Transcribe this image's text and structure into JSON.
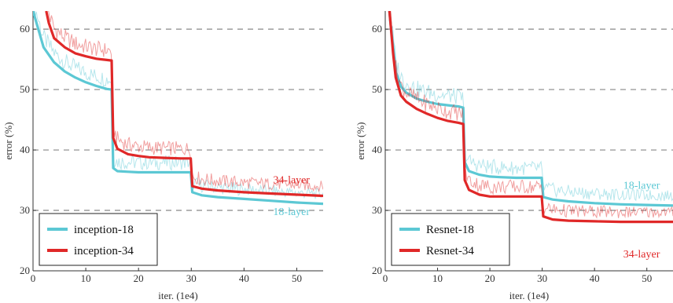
{
  "colors": {
    "series_a": "#5cc8d4",
    "series_b": "#e02828",
    "grid": "#888888"
  },
  "chart_data": [
    {
      "type": "line",
      "xlabel": "iter. (1e4)",
      "ylabel": "error (%)",
      "xlim": [
        0,
        55
      ],
      "ylim": [
        20,
        63
      ],
      "xticks": [
        "0",
        "10",
        "20",
        "30",
        "40",
        "50"
      ],
      "yticks": [
        "20",
        "30",
        "40",
        "50",
        "60"
      ],
      "grid": "dashed horizontal",
      "legend": {
        "position": "bottom-left",
        "entries": [
          "inception-18",
          "inception-34"
        ]
      },
      "annotations": [
        {
          "text": "34-layer",
          "x": 49,
          "y": 34.5,
          "series": 1
        },
        {
          "text": "18-layer",
          "x": 49,
          "y": 29.2,
          "series": 0
        }
      ],
      "series": [
        {
          "name": "inception-18",
          "x": [
            0,
            1,
            2,
            4,
            6,
            8,
            10,
            12,
            14,
            14.9,
            15.2,
            16,
            18,
            20,
            22,
            25,
            28,
            29.9,
            30.2,
            32,
            35,
            40,
            45,
            50,
            55
          ],
          "y": [
            63,
            60,
            57,
            54.5,
            53,
            52,
            51.2,
            50.6,
            50.1,
            50,
            37,
            36.5,
            36.4,
            36.3,
            36.3,
            36.3,
            36.3,
            36.3,
            33,
            32.5,
            32.2,
            31.9,
            31.6,
            31.3,
            31.1
          ]
        },
        {
          "name": "inception-34",
          "x": [
            2.5,
            3,
            4,
            6,
            8,
            10,
            12,
            14,
            14.9,
            15.2,
            16,
            18,
            20,
            22,
            25,
            28,
            29.9,
            30.2,
            32,
            35,
            40,
            45,
            50,
            55
          ],
          "y": [
            63,
            61,
            58.5,
            57,
            56,
            55.5,
            55.1,
            54.9,
            54.8,
            42,
            40.2,
            39.3,
            39,
            38.8,
            38.7,
            38.6,
            38.6,
            34,
            33.6,
            33.3,
            33,
            32.8,
            32.6,
            32.4
          ]
        }
      ]
    },
    {
      "type": "line",
      "xlabel": "iter. (1e4)",
      "ylabel": "error (%)",
      "xlim": [
        0,
        55
      ],
      "ylim": [
        20,
        63
      ],
      "xticks": [
        "0",
        "10",
        "20",
        "30",
        "40",
        "50"
      ],
      "yticks": [
        "20",
        "30",
        "40",
        "50",
        "60"
      ],
      "grid": "dashed horizontal",
      "legend": {
        "position": "bottom-left",
        "entries": [
          "Resnet-18",
          "Resnet-34"
        ]
      },
      "annotations": [
        {
          "text": "18-layer",
          "x": 49,
          "y": 33.6,
          "series": 0
        },
        {
          "text": "34-layer",
          "x": 49,
          "y": 22.2,
          "series": 1
        }
      ],
      "series": [
        {
          "name": "Resnet-18",
          "x": [
            0.8,
            1,
            1.5,
            2,
            3,
            4,
            6,
            8,
            10,
            12,
            14,
            14.9,
            15.2,
            16,
            18,
            20,
            22,
            25,
            28,
            29.9,
            30.2,
            32,
            35,
            40,
            45,
            50,
            55
          ],
          "y": [
            63,
            61,
            57,
            53,
            50.5,
            49.5,
            48.5,
            48,
            47.6,
            47.4,
            47.2,
            47,
            38,
            36.5,
            35.9,
            35.6,
            35.5,
            35.4,
            35.4,
            35.4,
            32.2,
            31.8,
            31.5,
            31.2,
            31,
            30.9,
            30.8
          ]
        },
        {
          "name": "Resnet-34",
          "x": [
            0.8,
            1,
            1.5,
            2,
            3,
            4,
            6,
            8,
            10,
            12,
            14,
            14.9,
            15.2,
            16,
            18,
            20,
            22,
            25,
            28,
            29.9,
            30.2,
            32,
            35,
            40,
            45,
            50,
            55
          ],
          "y": [
            63,
            61,
            56,
            52,
            49,
            48,
            46.8,
            46,
            45.3,
            44.8,
            44.5,
            44.3,
            35,
            33.4,
            32.6,
            32.3,
            32.3,
            32.3,
            32.3,
            32.3,
            29,
            28.5,
            28.3,
            28.2,
            28.1,
            28.1,
            28.1
          ]
        }
      ]
    }
  ]
}
